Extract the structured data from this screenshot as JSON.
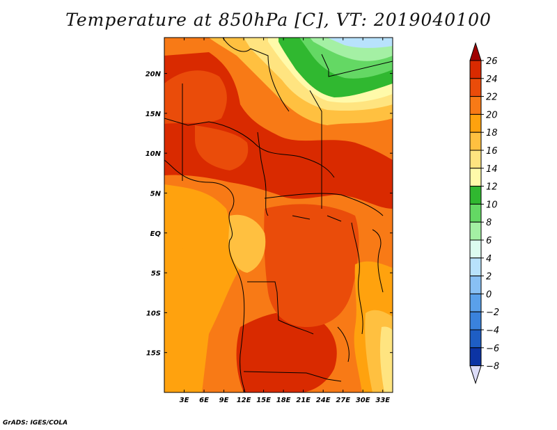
{
  "title": "Temperature at 850hPa [C], VT: 2019040100",
  "credit": "GrADS: IGES/COLA",
  "map": {
    "lon_range": [
      0,
      34.5
    ],
    "lat_range": [
      -20,
      24.5
    ],
    "lon_ticks": [
      {
        "v": 3,
        "label": "3E"
      },
      {
        "v": 6,
        "label": "6E"
      },
      {
        "v": 9,
        "label": "9E"
      },
      {
        "v": 12,
        "label": "12E"
      },
      {
        "v": 15,
        "label": "15E"
      },
      {
        "v": 18,
        "label": "18E"
      },
      {
        "v": 21,
        "label": "21E"
      },
      {
        "v": 24,
        "label": "24E"
      },
      {
        "v": 27,
        "label": "27E"
      },
      {
        "v": 30,
        "label": "30E"
      },
      {
        "v": 33,
        "label": "33E"
      }
    ],
    "lat_ticks": [
      {
        "v": 20,
        "label": "20N"
      },
      {
        "v": 15,
        "label": "15N"
      },
      {
        "v": 10,
        "label": "10N"
      },
      {
        "v": 5,
        "label": "5N"
      },
      {
        "v": 0,
        "label": "EQ"
      },
      {
        "v": -5,
        "label": "5S"
      },
      {
        "v": -10,
        "label": "10S"
      },
      {
        "v": -15,
        "label": "15S"
      }
    ]
  },
  "colorbar": {
    "levels": [
      "26",
      "24",
      "22",
      "20",
      "18",
      "16",
      "14",
      "12",
      "10",
      "8",
      "6",
      "4",
      "2",
      "0",
      "−2",
      "−4",
      "−6",
      "−8"
    ],
    "colors": [
      "#a00000",
      "#d92a00",
      "#ea4c0a",
      "#f87a16",
      "#ffa20e",
      "#ffc040",
      "#ffe480",
      "#fffaaa",
      "#30b830",
      "#64d864",
      "#a4f0a4",
      "#dcfcf0",
      "#b8e2fc",
      "#88c0f4",
      "#5aa0ea",
      "#3a82dc",
      "#1e5ec4",
      "#0c34a4",
      "#061870",
      "#dcdcf8"
    ]
  }
}
